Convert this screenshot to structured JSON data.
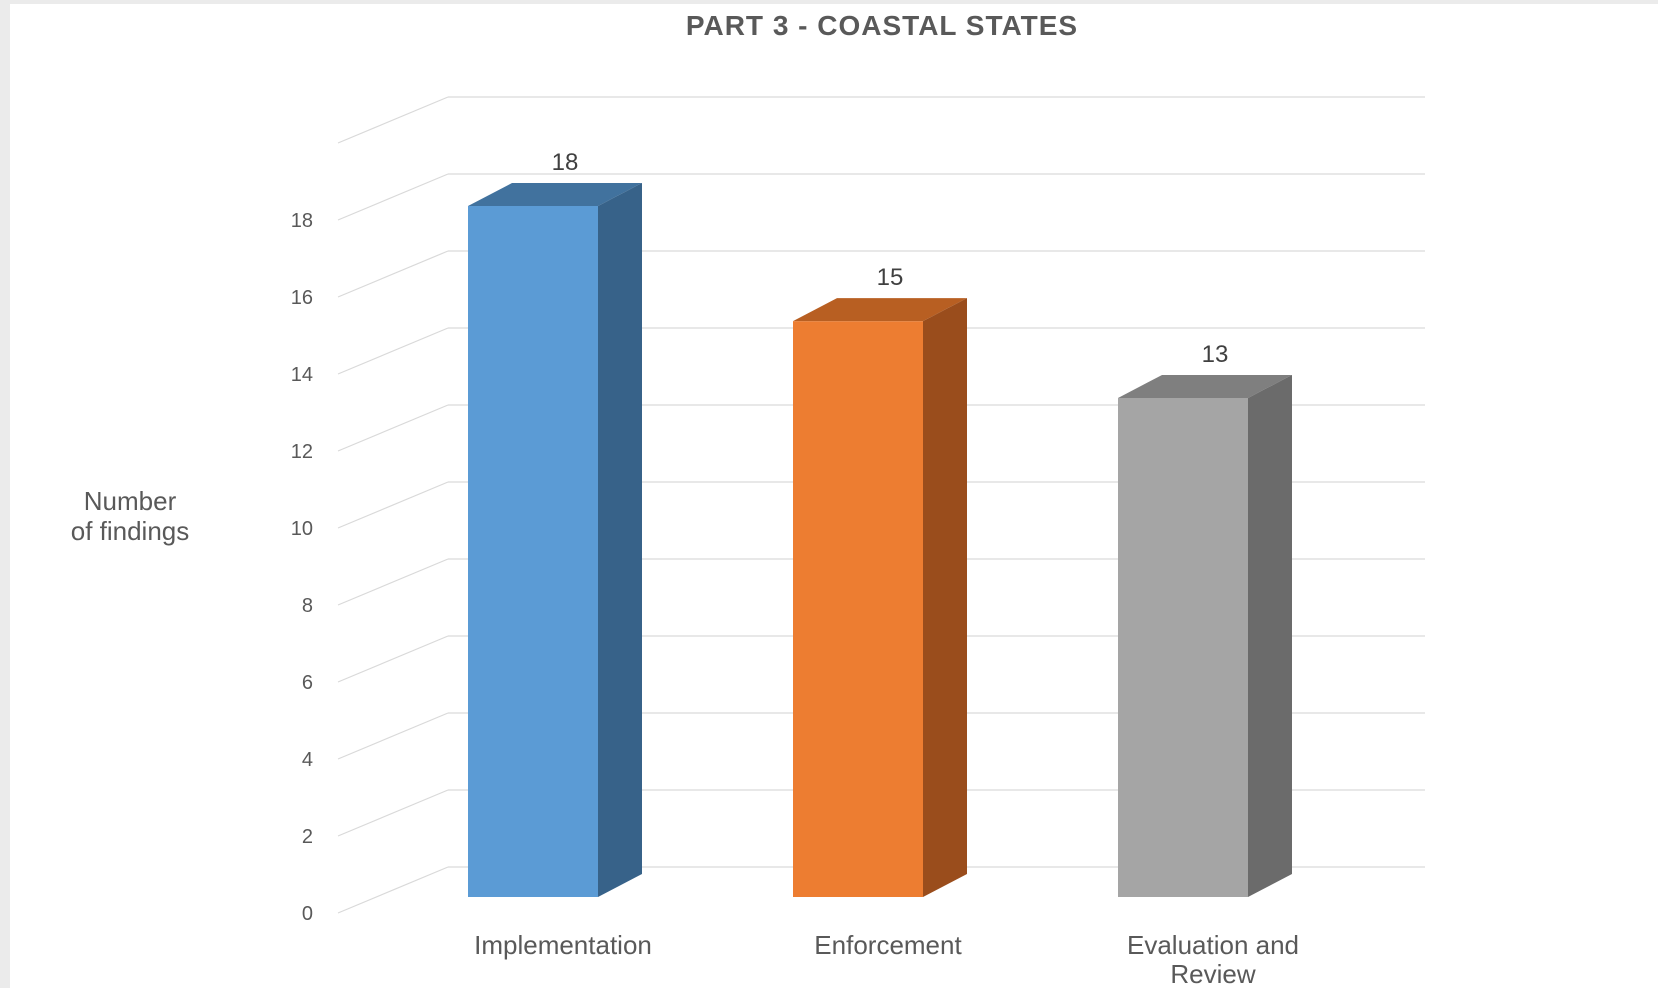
{
  "chart_data": {
    "type": "bar",
    "style": "3d-column",
    "title": "PART 3 - COASTAL STATES",
    "ylabel_lines": [
      "Number",
      "of findings"
    ],
    "xlabel": "",
    "categories": [
      [
        "Implementation"
      ],
      [
        "Enforcement"
      ],
      [
        "Evaluation and",
        "Review"
      ]
    ],
    "values": [
      18,
      15,
      13
    ],
    "data_labels": [
      "18",
      "15",
      "13"
    ],
    "ylim": [
      0,
      18
    ],
    "ytick_step": 2,
    "yticks": [
      "0",
      "2",
      "4",
      "6",
      "8",
      "10",
      "12",
      "14",
      "16",
      "18"
    ],
    "grid": true,
    "legend": "none",
    "colors": [
      {
        "front": "#5b9bd5",
        "top": "#41729e",
        "side": "#376289"
      },
      {
        "front": "#ed7d31",
        "top": "#b85f22",
        "side": "#9a4d1c"
      },
      {
        "front": "#a5a5a5",
        "top": "#7f7f7f",
        "side": "#6b6b6b"
      }
    ],
    "gridline_color": "#d9d9d9"
  }
}
